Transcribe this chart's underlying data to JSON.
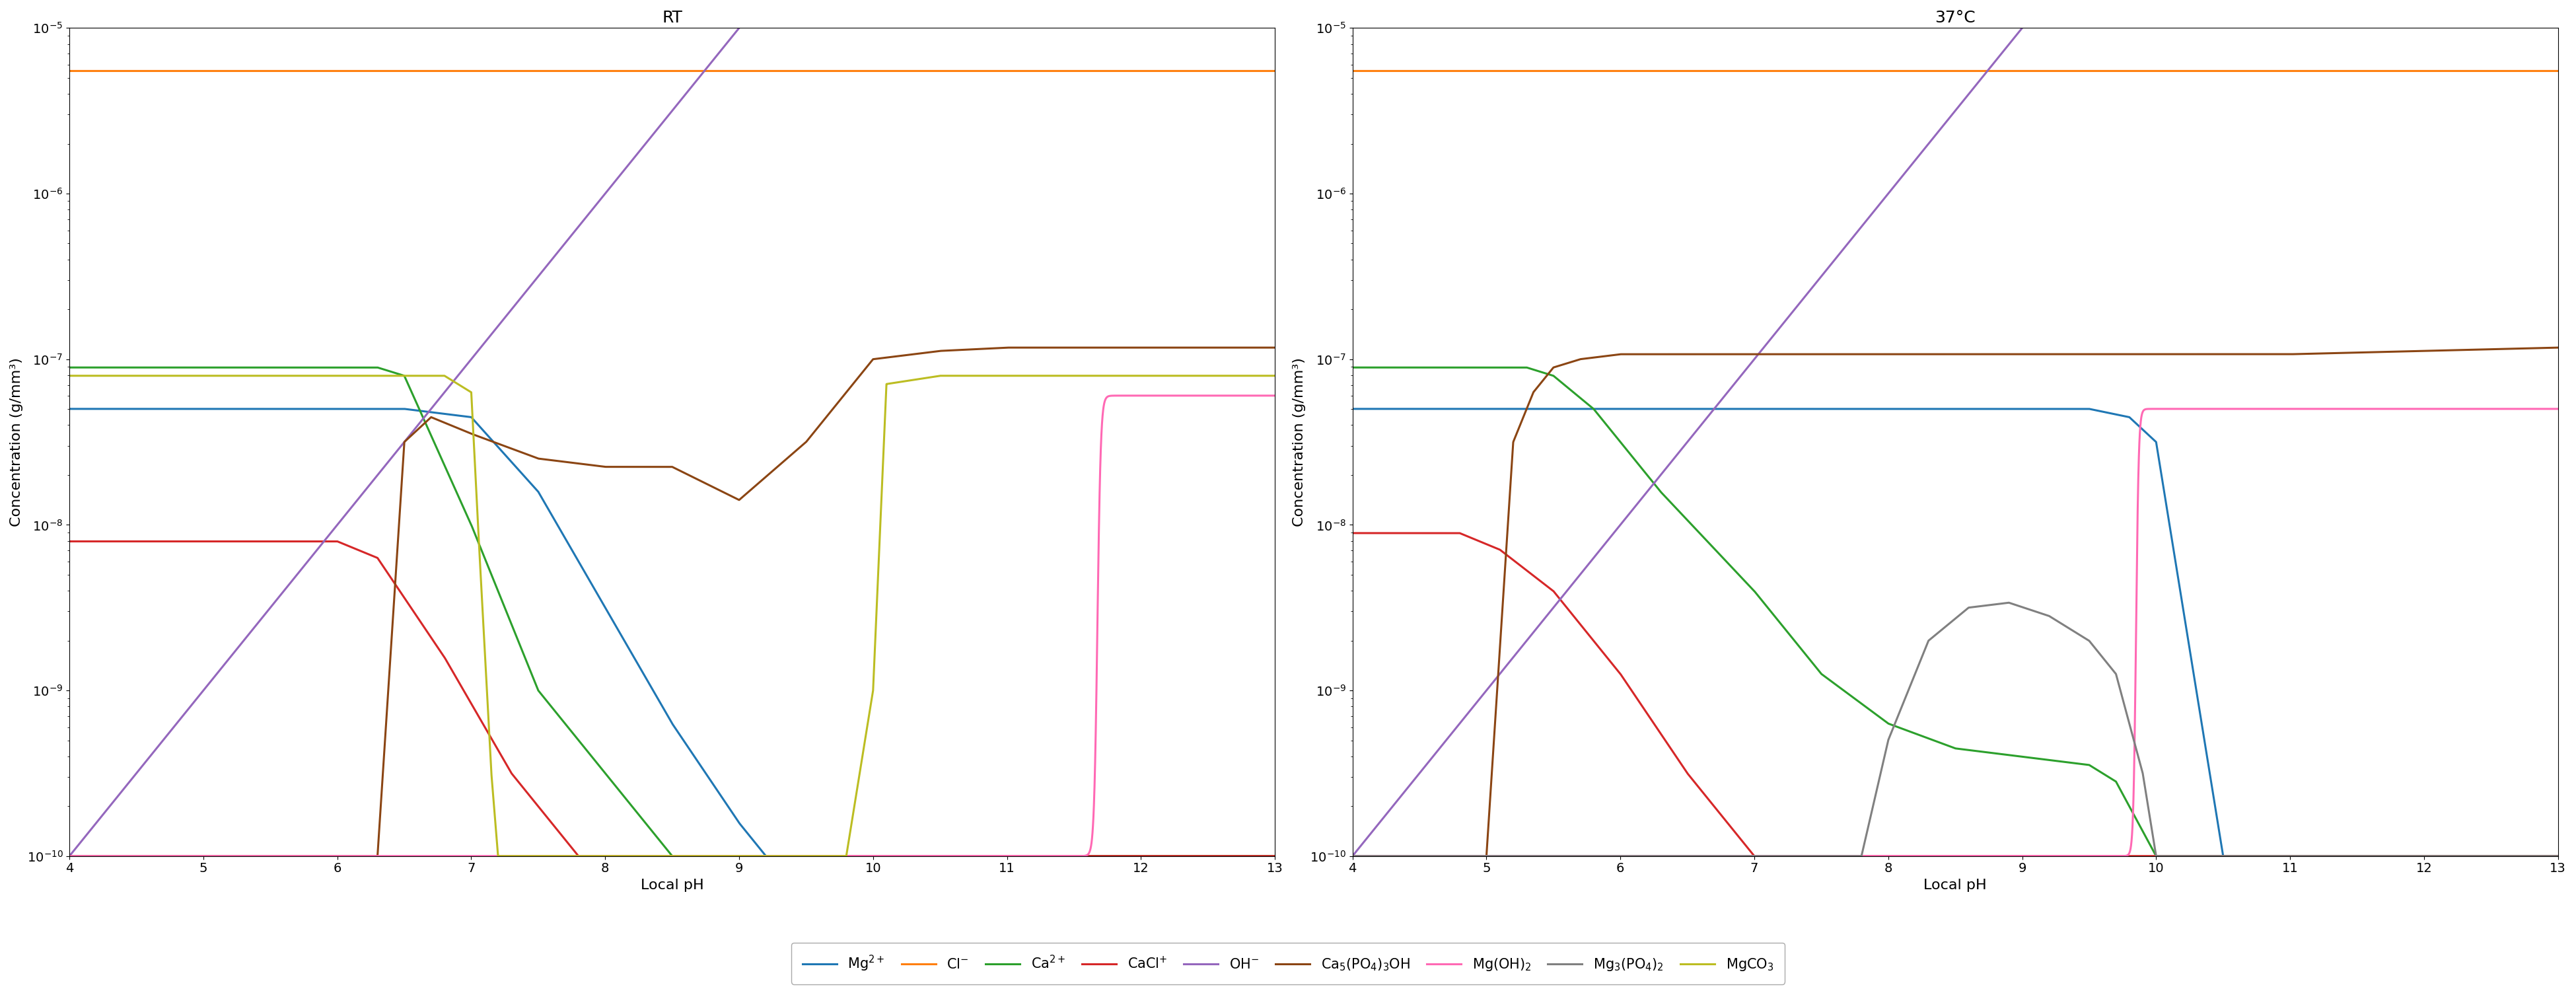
{
  "title_left": "RT",
  "title_right": "37°C",
  "xlabel": "Local pH",
  "ylabel": "Concentration (g/mm³)",
  "colors": {
    "Mg2+": "#1f77b4",
    "Cl-": "#ff7f0e",
    "Ca2+": "#2ca02c",
    "CaCl+": "#d62728",
    "OH-": "#9467bd",
    "Ca5PO4OH": "#8b4513",
    "MgOH2": "#ff69b4",
    "Mg3PO42": "#808080",
    "MgCO3": "#bcbd22"
  },
  "legend_labels": {
    "Mg2+": "Mg$^{2+}$",
    "Cl-": "Cl$^{-}$",
    "Ca2+": "Ca$^{2+}$",
    "CaCl+": "CaCl$^{+}$",
    "OH-": "OH$^{-}$",
    "Ca5PO4OH": "Ca$_5$(PO$_4$)$_3$OH",
    "MgOH2": "Mg(OH)$_2$",
    "Mg3PO42": "Mg$_3$(PO$_4$)$_2$",
    "MgCO3": "MgCO$_3$"
  },
  "lw": 2.2,
  "fontsize_title": 18,
  "fontsize_axis": 16,
  "fontsize_tick": 14,
  "fontsize_legend": 15
}
